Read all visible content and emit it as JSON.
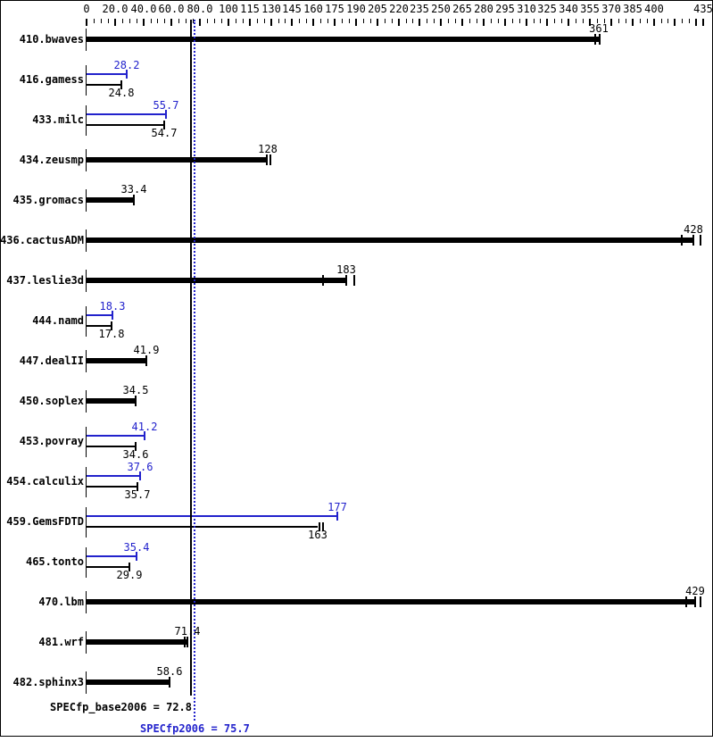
{
  "colors": {
    "base_bar": "#000000",
    "peak_bar": "#2222cc",
    "background": "#ffffff",
    "border": "#000000"
  },
  "axis": {
    "min": 0,
    "max": 435,
    "minor_step": 5,
    "labeled_ticks": [
      {
        "v": 0,
        "label": "0"
      },
      {
        "v": 20,
        "label": "20.0"
      },
      {
        "v": 40,
        "label": "40.0"
      },
      {
        "v": 60,
        "label": "60.0"
      },
      {
        "v": 80,
        "label": "80.0"
      },
      {
        "v": 100,
        "label": "100"
      },
      {
        "v": 115,
        "label": "115"
      },
      {
        "v": 130,
        "label": "130"
      },
      {
        "v": 145,
        "label": "145"
      },
      {
        "v": 160,
        "label": "160"
      },
      {
        "v": 175,
        "label": "175"
      },
      {
        "v": 190,
        "label": "190"
      },
      {
        "v": 205,
        "label": "205"
      },
      {
        "v": 220,
        "label": "220"
      },
      {
        "v": 235,
        "label": "235"
      },
      {
        "v": 250,
        "label": "250"
      },
      {
        "v": 265,
        "label": "265"
      },
      {
        "v": 280,
        "label": "280"
      },
      {
        "v": 295,
        "label": "295"
      },
      {
        "v": 310,
        "label": "310"
      },
      {
        "v": 325,
        "label": "325"
      },
      {
        "v": 340,
        "label": "340"
      },
      {
        "v": 355,
        "label": "355"
      },
      {
        "v": 370,
        "label": "370"
      },
      {
        "v": 385,
        "label": "385"
      },
      {
        "v": 400,
        "label": "400"
      },
      {
        "v": 435,
        "label": "435"
      }
    ]
  },
  "chart_data": {
    "type": "bar",
    "orientation": "horizontal",
    "title": "",
    "xlabel": "",
    "ylabel": "",
    "xlim": [
      0,
      435
    ],
    "legend": "none",
    "grid": false,
    "benchmarks": [
      {
        "name": "410.bwaves",
        "base": 361,
        "base_label": "361",
        "peak": null,
        "marks": [
          359,
          362
        ]
      },
      {
        "name": "416.gamess",
        "base": 24.8,
        "base_label": "24.8",
        "peak": 28.2,
        "peak_label": "28.2"
      },
      {
        "name": "433.milc",
        "base": 54.7,
        "base_label": "54.7",
        "peak": 55.7,
        "peak_label": "55.7"
      },
      {
        "name": "434.zeusmp",
        "base": 128,
        "base_label": "128",
        "peak": null,
        "marks": [
          127,
          129.5
        ]
      },
      {
        "name": "435.gromacs",
        "base": 33.4,
        "base_label": "33.4",
        "peak": null
      },
      {
        "name": "436.cactusADM",
        "base": 428,
        "base_label": "428",
        "peak": null,
        "marks": [
          420,
          428,
          433
        ]
      },
      {
        "name": "437.leslie3d",
        "base": 183,
        "base_label": "183",
        "peak": null,
        "marks": [
          167,
          183,
          189
        ]
      },
      {
        "name": "444.namd",
        "base": 17.8,
        "base_label": "17.8",
        "peak": 18.3,
        "peak_label": "18.3"
      },
      {
        "name": "447.dealII",
        "base": 41.9,
        "base_label": "41.9",
        "peak": null
      },
      {
        "name": "450.soplex",
        "base": 34.5,
        "base_label": "34.5",
        "peak": null
      },
      {
        "name": "453.povray",
        "base": 34.6,
        "base_label": "34.6",
        "peak": 41.2,
        "peak_label": "41.2"
      },
      {
        "name": "454.calculix",
        "base": 35.7,
        "base_label": "35.7",
        "peak": 37.6,
        "peak_label": "37.6"
      },
      {
        "name": "459.GemsFDTD",
        "base": 163,
        "base_label": "163",
        "peak": 177,
        "peak_label": "177",
        "base_marks": [
          164.5,
          166.5
        ]
      },
      {
        "name": "465.tonto",
        "base": 29.9,
        "base_label": "29.9",
        "peak": 35.4,
        "peak_label": "35.4"
      },
      {
        "name": "470.lbm",
        "base": 429,
        "base_label": "429",
        "peak": null,
        "marks": [
          423,
          429,
          433
        ]
      },
      {
        "name": "481.wrf",
        "base": 71.4,
        "base_label": "71.4",
        "peak": null,
        "marks": [
          69.5,
          71.4
        ]
      },
      {
        "name": "482.sphinx3",
        "base": 58.6,
        "base_label": "58.6",
        "peak": null
      }
    ],
    "reference_lines": [
      {
        "name": "base mean",
        "value": 72.8,
        "style": "solid",
        "color": "#000000"
      },
      {
        "name": "peak mean",
        "value": 75.7,
        "style": "dotted",
        "color": "#2222cc"
      }
    ],
    "summary": {
      "base_text": "SPECfp_base2006 = 72.8",
      "base_value": 72.8,
      "peak_text": "SPECfp2006 = 75.7",
      "peak_value": 75.7
    }
  }
}
